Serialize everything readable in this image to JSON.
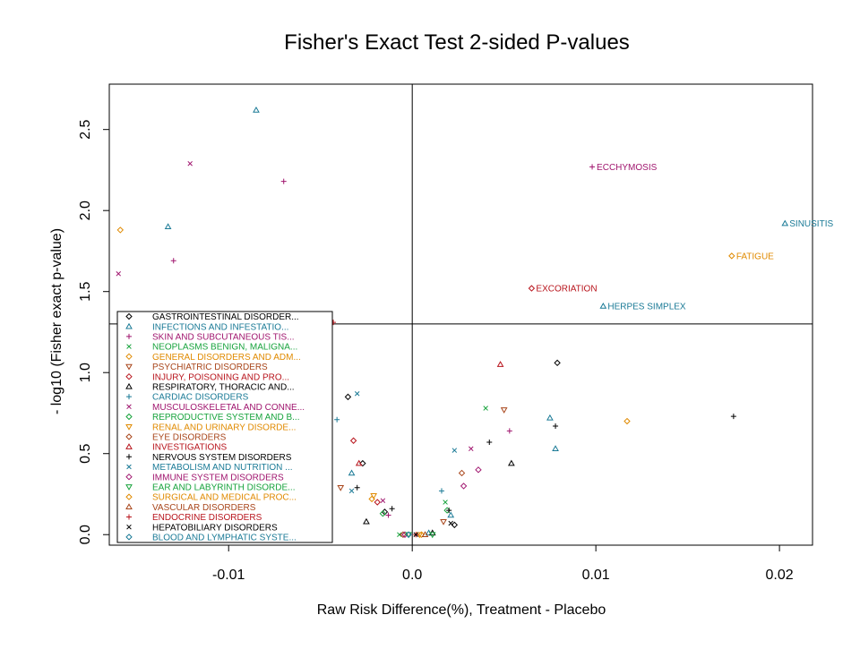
{
  "chart_data": {
    "type": "scatter",
    "title": "Fisher's Exact Test 2-sided P-values",
    "xlabel": "Raw Risk Difference(%), Treatment - Placebo",
    "ylabel": "- log10 (Fisher exact p-value)",
    "xlim": [
      -0.0165,
      0.0218
    ],
    "ylim": [
      -0.065,
      2.78
    ],
    "x_ticks": [
      {
        "value": -0.01,
        "label": "-0.01"
      },
      {
        "value": 0.0,
        "label": "0.0"
      },
      {
        "value": 0.01,
        "label": "0.01"
      },
      {
        "value": 0.02,
        "label": "0.02"
      }
    ],
    "y_ticks": [
      {
        "value": 0.0,
        "label": "0.0"
      },
      {
        "value": 0.5,
        "label": "0.5"
      },
      {
        "value": 1.0,
        "label": "1.0"
      },
      {
        "value": 1.5,
        "label": "1.5"
      },
      {
        "value": 2.0,
        "label": "2.0"
      },
      {
        "value": 2.5,
        "label": "2.5"
      }
    ],
    "reference_lines": {
      "vertical_x": 0.0,
      "horizontal_y": 1.3
    },
    "grid": false,
    "legend_position": "bottom-left",
    "series": [
      {
        "name": "GASTROINTESTINAL DISORDER...",
        "color": "#000000",
        "symbol": "diamond",
        "points": [
          [
            0.0079,
            1.06
          ],
          [
            -0.0035,
            0.85
          ],
          [
            -0.0027,
            0.44
          ],
          [
            0.0023,
            0.06
          ],
          [
            -0.0015,
            0.14
          ]
        ]
      },
      {
        "name": "INFECTIONS AND INFESTATIO...",
        "color": "#1a7a96",
        "symbol": "triangle",
        "points": [
          [
            -0.0085,
            2.62
          ],
          [
            -0.0133,
            1.9
          ],
          [
            0.0203,
            1.92
          ],
          [
            0.0104,
            1.41
          ],
          [
            0.0075,
            0.72
          ],
          [
            0.0078,
            0.53
          ],
          [
            -0.0033,
            0.38
          ],
          [
            0.0021,
            0.12
          ],
          [
            0.0009,
            0.01
          ]
        ],
        "labels": [
          {
            "text": "SINUSITIS",
            "x": 0.0203,
            "y": 1.92
          },
          {
            "text": "HERPES SIMPLEX",
            "x": 0.0104,
            "y": 1.41
          }
        ]
      },
      {
        "name": "SKIN AND SUBCUTANEOUS TIS...",
        "color": "#a0156e",
        "symbol": "plus",
        "points": [
          [
            0.0098,
            2.27
          ],
          [
            -0.007,
            2.18
          ],
          [
            -0.013,
            1.69
          ],
          [
            0.0053,
            0.64
          ],
          [
            -0.0013,
            0.12
          ]
        ],
        "labels": [
          {
            "text": "ECCHYMOSIS",
            "x": 0.0098,
            "y": 2.27
          }
        ]
      },
      {
        "name": "NEOPLASMS BENIGN, MALIGNA...",
        "color": "#17a33c",
        "symbol": "x",
        "points": [
          [
            0.004,
            0.78
          ],
          [
            0.0018,
            0.2
          ],
          [
            -0.0007,
            0.0
          ]
        ]
      },
      {
        "name": "GENERAL DISORDERS AND ADM...",
        "color": "#e08a00",
        "symbol": "diamond",
        "points": [
          [
            -0.0159,
            1.88
          ],
          [
            0.0174,
            1.72
          ],
          [
            0.0117,
            0.7
          ],
          [
            -0.0022,
            0.22
          ]
        ],
        "labels": [
          {
            "text": "FATIGUE",
            "x": 0.0174,
            "y": 1.72
          }
        ]
      },
      {
        "name": "PSYCHIATRIC DISORDERS",
        "color": "#a8451a",
        "symbol": "triangle-down",
        "points": [
          [
            0.005,
            0.77
          ],
          [
            -0.0039,
            0.29
          ],
          [
            0.0017,
            0.08
          ]
        ]
      },
      {
        "name": "INJURY, POISONING AND PRO...",
        "color": "#b8141c",
        "symbol": "diamond",
        "points": [
          [
            0.0065,
            1.52
          ],
          [
            -0.0046,
            0.82
          ],
          [
            -0.0032,
            0.58
          ],
          [
            -0.0019,
            0.2
          ]
        ],
        "labels": [
          {
            "text": "EXCORIATION",
            "x": 0.0065,
            "y": 1.52
          }
        ]
      },
      {
        "name": "RESPIRATORY, THORACIC AND...",
        "color": "#000000",
        "symbol": "triangle",
        "points": [
          [
            0.0054,
            0.44
          ],
          [
            -0.0025,
            0.08
          ],
          [
            0.0011,
            0.01
          ]
        ]
      },
      {
        "name": "CARDIAC DISORDERS",
        "color": "#1a7a96",
        "symbol": "plus",
        "points": [
          [
            -0.0041,
            0.71
          ],
          [
            0.0016,
            0.27
          ]
        ]
      },
      {
        "name": "MUSCULOSKELETAL AND CONNE...",
        "color": "#a0156e",
        "symbol": "x",
        "points": [
          [
            -0.0121,
            2.29
          ],
          [
            -0.016,
            1.61
          ],
          [
            0.0032,
            0.53
          ],
          [
            -0.0016,
            0.21
          ]
        ]
      },
      {
        "name": "REPRODUCTIVE SYSTEM AND B...",
        "color": "#17a33c",
        "symbol": "diamond",
        "points": [
          [
            -0.0016,
            0.13
          ],
          [
            0.0019,
            0.15
          ]
        ]
      },
      {
        "name": "RENAL AND URINARY DISORDE...",
        "color": "#e08a00",
        "symbol": "triangle-down",
        "points": [
          [
            -0.0021,
            0.24
          ],
          [
            0.0004,
            0.0
          ]
        ]
      },
      {
        "name": "EYE DISORDERS",
        "color": "#a8451a",
        "symbol": "diamond",
        "points": [
          [
            0.0027,
            0.38
          ],
          [
            -0.0005,
            0.0
          ]
        ]
      },
      {
        "name": "INVESTIGATIONS",
        "color": "#b8141c",
        "symbol": "triangle",
        "points": [
          [
            0.0048,
            1.05
          ],
          [
            -0.0029,
            0.44
          ]
        ]
      },
      {
        "name": "NERVOUS SYSTEM DISORDERS",
        "color": "#000000",
        "symbol": "plus",
        "points": [
          [
            0.0175,
            0.73
          ],
          [
            0.0078,
            0.67
          ],
          [
            0.0042,
            0.57
          ],
          [
            -0.003,
            0.29
          ],
          [
            -0.0011,
            0.16
          ],
          [
            0.002,
            0.15
          ]
        ]
      },
      {
        "name": "METABOLISM AND NUTRITION ...",
        "color": "#1a7a96",
        "symbol": "x",
        "points": [
          [
            -0.003,
            0.87
          ],
          [
            0.0023,
            0.52
          ],
          [
            -0.0033,
            0.27
          ]
        ]
      },
      {
        "name": "IMMUNE SYSTEM DISORDERS",
        "color": "#a0156e",
        "symbol": "diamond",
        "points": [
          [
            0.0036,
            0.4
          ],
          [
            0.0028,
            0.3
          ],
          [
            -0.0004,
            0.0
          ]
        ]
      },
      {
        "name": "EAR AND LABYRINTH DISORDE...",
        "color": "#17a33c",
        "symbol": "triangle-down",
        "points": [
          [
            0.0011,
            0.0
          ],
          [
            -0.0002,
            0.0
          ]
        ]
      },
      {
        "name": "SURGICAL AND MEDICAL PROC...",
        "color": "#e08a00",
        "symbol": "diamond",
        "points": [
          [
            0.0005,
            0.0
          ]
        ]
      },
      {
        "name": "VASCULAR DISORDERS",
        "color": "#a8451a",
        "symbol": "triangle",
        "points": [
          [
            0.0007,
            0.0
          ]
        ]
      },
      {
        "name": "ENDOCRINE DISORDERS",
        "color": "#b8141c",
        "symbol": "plus",
        "points": [
          [
            -0.0043,
            1.31
          ],
          [
            0.0002,
            0.0
          ]
        ]
      },
      {
        "name": "HEPATOBILIARY DISORDERS",
        "color": "#000000",
        "symbol": "x",
        "points": [
          [
            0.0002,
            0.0
          ],
          [
            0.0021,
            0.07
          ]
        ]
      },
      {
        "name": "BLOOD AND LYMPHATIC SYSTE...",
        "color": "#1a7a96",
        "symbol": "diamond",
        "points": [
          [
            -0.0002,
            0.0
          ]
        ]
      }
    ]
  }
}
